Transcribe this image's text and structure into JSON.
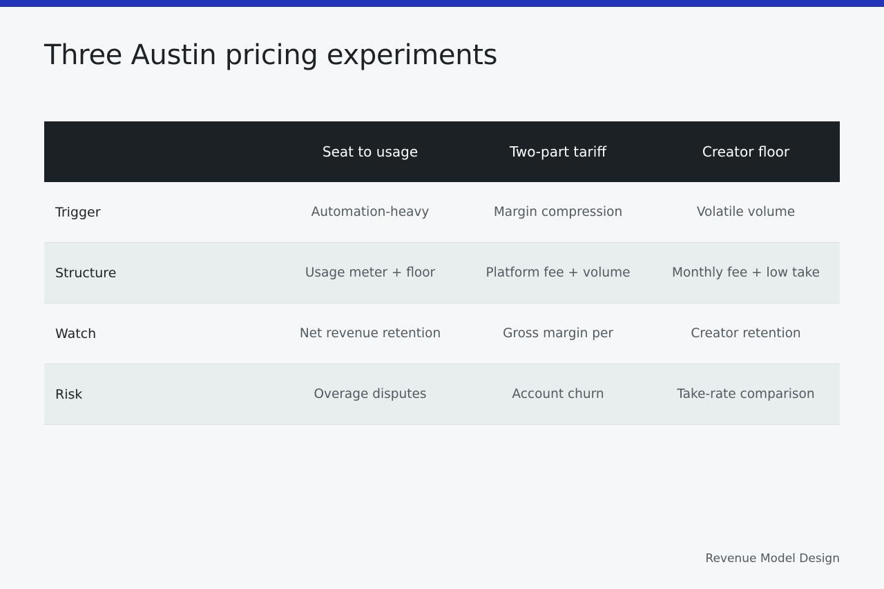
{
  "title": "Three Austin pricing experiments",
  "table": {
    "columns": [
      "",
      "Seat to usage",
      "Two-part tariff",
      "Creator floor"
    ],
    "rows": [
      {
        "label": "Trigger",
        "cells": [
          "Automation-heavy",
          "Margin compression",
          "Volatile volume"
        ]
      },
      {
        "label": "Structure",
        "cells": [
          "Usage meter + floor",
          "Platform fee + volume",
          "Monthly fee + low take"
        ]
      },
      {
        "label": "Watch",
        "cells": [
          "Net revenue retention",
          "Gross margin per",
          "Creator retention"
        ]
      },
      {
        "label": "Risk",
        "cells": [
          "Overage disputes",
          "Account churn",
          "Take-rate comparison"
        ]
      }
    ]
  },
  "footer": "Revenue Model Design",
  "colors": {
    "accent_bar": "#2434b8",
    "header_bg": "#1b2125",
    "alt_row_bg": "#e8edee",
    "page_bg": "#f5f7f9"
  }
}
